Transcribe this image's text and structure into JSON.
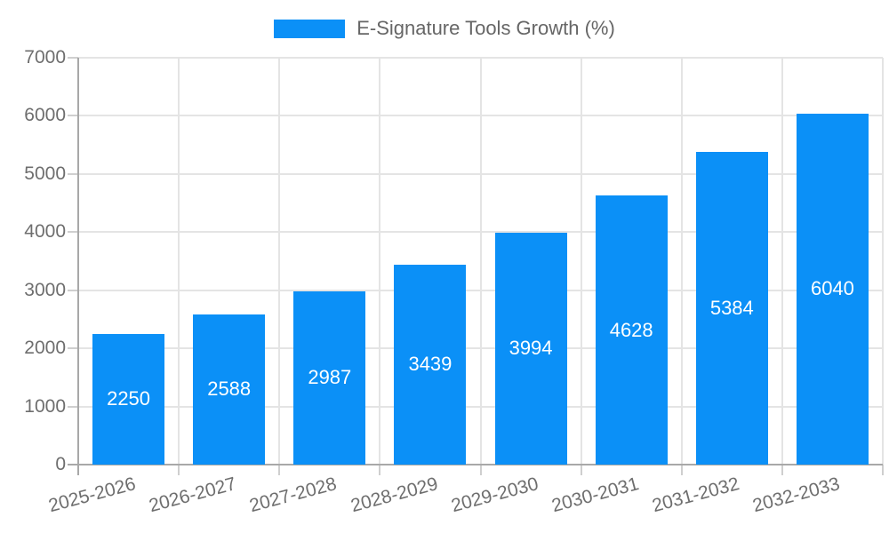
{
  "chart_data": {
    "type": "bar",
    "title": "E-Signature Tools Growth (%)",
    "categories": [
      "2025-2026",
      "2026-2027",
      "2027-2028",
      "2028-2029",
      "2029-2030",
      "2030-2031",
      "2031-2032",
      "2032-2033"
    ],
    "values": [
      2250,
      2588,
      2987,
      3439,
      3994,
      4628,
      5384,
      6040
    ],
    "yticks": [
      "0",
      "1000",
      "2000",
      "3000",
      "4000",
      "5000",
      "6000",
      "7000"
    ],
    "ylim": [
      0,
      7000
    ],
    "xlabel": "",
    "ylabel": "",
    "grid": true,
    "legend_position": "top",
    "value_labels": "inside-center"
  },
  "colors": {
    "bar": "#0b90f7",
    "axis_text": "#6e6e6e",
    "legend_text": "#666666",
    "gridline": "#e4e4e4",
    "axis_line": "#a8a8a8",
    "tick": "#cfcfcf",
    "value_label": "#ffffff",
    "background": "#ffffff"
  }
}
